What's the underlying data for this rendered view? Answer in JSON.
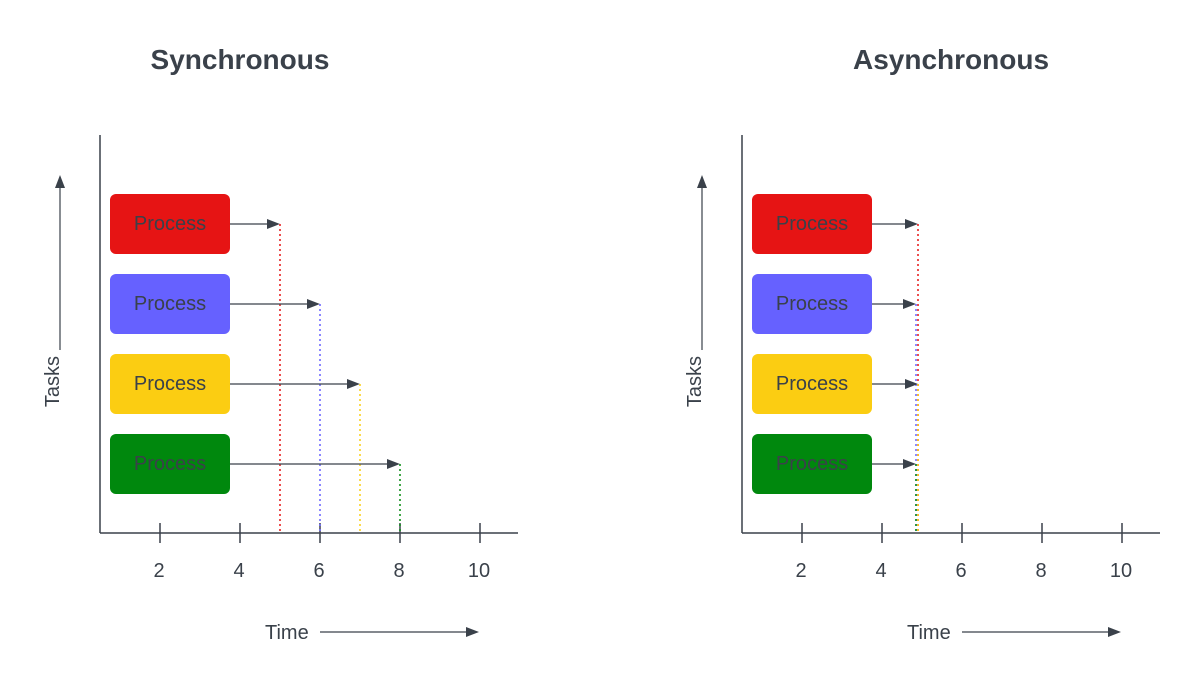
{
  "panels": [
    {
      "title": "Synchronous",
      "y_axis_label": "Tasks",
      "x_axis_label": "Time",
      "ticks": [
        "2",
        "4",
        "6",
        "8",
        "10"
      ],
      "processes": [
        {
          "label": "Process",
          "color": "#e61414",
          "end_time": 5
        },
        {
          "label": "Process",
          "color": "#6661ff",
          "end_time": 6
        },
        {
          "label": "Process",
          "color": "#fbcd12",
          "end_time": 7
        },
        {
          "label": "Process",
          "color": "#00880d",
          "end_time": 8
        }
      ]
    },
    {
      "title": "Asynchronous",
      "y_axis_label": "Tasks",
      "x_axis_label": "Time",
      "ticks": [
        "2",
        "4",
        "6",
        "8",
        "10"
      ],
      "processes": [
        {
          "label": "Process",
          "color": "#e61414",
          "end_time": 4.9
        },
        {
          "label": "Process",
          "color": "#6661ff",
          "end_time": 4.85
        },
        {
          "label": "Process",
          "color": "#fbcd12",
          "end_time": 4.9
        },
        {
          "label": "Process",
          "color": "#00880d",
          "end_time": 4.85
        }
      ]
    }
  ],
  "colors": {
    "axis": "#3a414a",
    "text": "#3a414a"
  }
}
